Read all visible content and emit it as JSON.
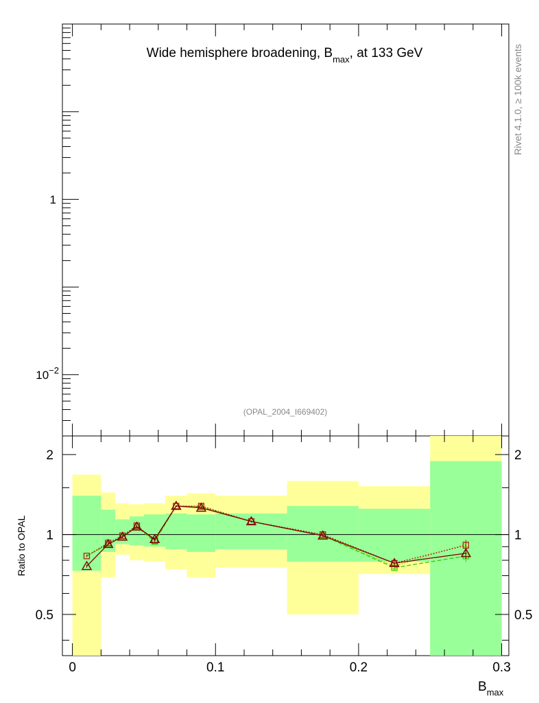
{
  "chart_data": [
    {
      "panel": "main",
      "type": "line",
      "title": "Wide hemisphere broadening, B",
      "title_sub": "max",
      "title_tail": ", at 133 GeV",
      "side_label": "Rivet 4.1.0, ≥ 100k events",
      "analysis_label": "(OPAL_2004_I669402)",
      "yscale": "log",
      "ylim": [
        0.002,
        100
      ],
      "ytick_labels": [
        {
          "value": 1,
          "base": "1",
          "exp": ""
        },
        {
          "value": 0.01,
          "base": "10",
          "exp": "−2"
        }
      ],
      "series": []
    },
    {
      "panel": "ratio",
      "type": "line",
      "xlabel": "B",
      "xlabel_sub": "max",
      "ylabel": "Ratio to OPAL",
      "xlim": [
        -0.007,
        0.305
      ],
      "ylim": [
        0.35,
        2.35
      ],
      "xticks": [
        0,
        0.1,
        0.2,
        0.3
      ],
      "xtick_labels": [
        "0",
        "0.1",
        "0.2",
        "0.3"
      ],
      "yticks": [
        0.5,
        1,
        2
      ],
      "ytick_labels": [
        "0.5",
        "1",
        "2"
      ],
      "bin_edges": [
        0,
        0.02,
        0.03,
        0.04,
        0.05,
        0.065,
        0.08,
        0.1,
        0.15,
        0.2,
        0.25,
        0.3
      ],
      "band_outer_low": [
        0.35,
        0.69,
        0.84,
        0.8,
        0.79,
        0.74,
        0.69,
        0.75,
        0.5,
        0.71,
        0.35
      ],
      "band_outer_high": [
        1.68,
        1.44,
        1.31,
        1.3,
        1.31,
        1.4,
        1.43,
        1.4,
        1.59,
        1.52,
        2.35
      ],
      "band_inner_low": [
        0.73,
        0.86,
        0.92,
        0.91,
        0.9,
        0.88,
        0.86,
        0.88,
        0.79,
        0.79,
        0.35
      ],
      "band_inner_high": [
        1.4,
        1.24,
        1.14,
        1.17,
        1.19,
        1.2,
        1.19,
        1.2,
        1.28,
        1.25,
        1.89
      ],
      "band_colors": {
        "outer": "#ffff99",
        "inner": "#99ff99"
      },
      "reference_line": 1,
      "series": [
        {
          "style": "solid",
          "color": "#7a0000",
          "marker": "triangle",
          "x": [
            0.01,
            0.025,
            0.035,
            0.045,
            0.0575,
            0.0725,
            0.09,
            0.125,
            0.175,
            0.225,
            0.275
          ],
          "y": [
            0.76,
            0.92,
            0.98,
            1.07,
            0.96,
            1.28,
            1.26,
            1.12,
            0.99,
            0.78,
            0.85
          ],
          "err": [
            0.01,
            0.01,
            0.01,
            0.01,
            0.01,
            0.01,
            0.01,
            0.01,
            0.01,
            0.02,
            0.04
          ]
        },
        {
          "style": "dotted",
          "color": "#b02020",
          "marker": "square",
          "x": [
            0.01,
            0.025,
            0.035,
            0.045,
            0.0575,
            0.0725,
            0.09,
            0.125,
            0.175,
            0.225,
            0.275
          ],
          "y": [
            0.83,
            0.93,
            0.99,
            1.08,
            0.95,
            1.28,
            1.28,
            1.12,
            1.0,
            0.78,
            0.91
          ],
          "err": [
            0.01,
            0.01,
            0.01,
            0.01,
            0.01,
            0.01,
            0.01,
            0.01,
            0.01,
            0.02,
            0.04
          ]
        },
        {
          "style": "dashed",
          "color": "#33cc00",
          "marker": "square",
          "x": [
            0.01,
            0.025,
            0.035,
            0.045,
            0.0575,
            0.0725,
            0.09,
            0.125,
            0.175,
            0.225,
            0.275
          ],
          "y": [
            0.83,
            0.92,
            0.98,
            1.07,
            0.94,
            1.28,
            1.27,
            1.12,
            0.99,
            0.75,
            0.83
          ],
          "err": [
            0.01,
            0.01,
            0.01,
            0.01,
            0.01,
            0.01,
            0.01,
            0.01,
            0.01,
            0.02,
            0.04
          ]
        },
        {
          "style": "dotted",
          "color": "#99cc00",
          "marker": "square",
          "x": [
            0.01,
            0.025,
            0.035,
            0.045,
            0.0575,
            0.0725,
            0.09,
            0.125,
            0.175,
            0.225,
            0.275
          ],
          "y": [
            0.83,
            0.92,
            0.98,
            1.07,
            0.95,
            1.28,
            1.27,
            1.12,
            0.99,
            0.76,
            0.92
          ],
          "err": [
            0.01,
            0.01,
            0.01,
            0.01,
            0.01,
            0.01,
            0.01,
            0.01,
            0.01,
            0.02,
            0.04
          ]
        }
      ]
    }
  ]
}
